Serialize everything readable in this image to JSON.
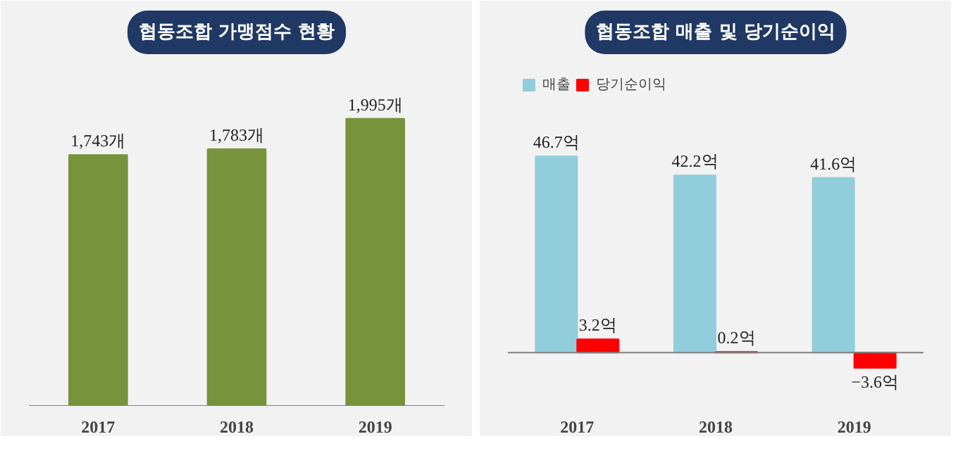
{
  "chart_data": [
    {
      "type": "bar",
      "title": "협동조합 가맹점수 현황",
      "categories": [
        "2017",
        "2018",
        "2019"
      ],
      "series": [
        {
          "color": "#77933c",
          "values": [
            1743,
            1783,
            1995
          ],
          "value_labels": [
            "1,743개",
            "1,783개",
            "1,995개"
          ]
        }
      ]
    },
    {
      "type": "bar",
      "title": "협동조합 매출 및 당기순이익",
      "categories": [
        "2017",
        "2018",
        "2019"
      ],
      "legend": "top left",
      "series": [
        {
          "name": "매출",
          "color": "#92cddc",
          "values": [
            46.7,
            42.2,
            41.6
          ],
          "value_labels": [
            "46.7억",
            "42.2억",
            "41.6억"
          ]
        },
        {
          "name": "당기순이익",
          "color": "#ff0000",
          "values": [
            3.2,
            0.2,
            -3.6
          ],
          "value_labels": [
            "3.2억",
            "0.2억",
            "−3.6억"
          ]
        }
      ]
    }
  ]
}
